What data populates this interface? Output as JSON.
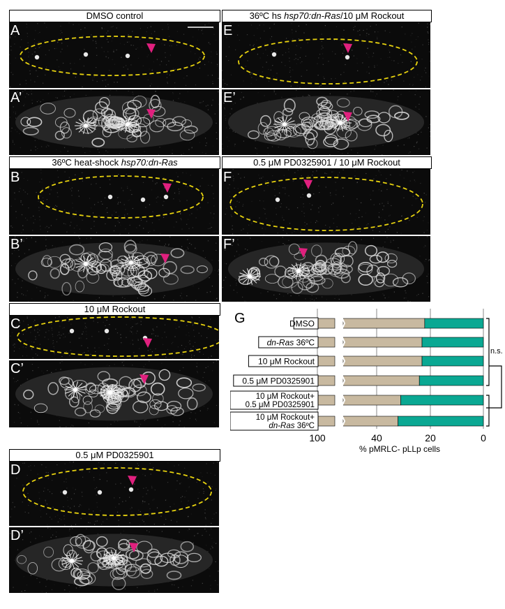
{
  "titles": {
    "a": "DMSO control",
    "e_prefix": "36ºC hs ",
    "e_italic": "hsp70:dn-Ras",
    "e_suffix": "/10 μM Rockout",
    "b_prefix": "36ºC heat-shock ",
    "b_italic": "hsp70:dn-Ras",
    "f": "0.5 μM PD0325901 / 10 μM Rockout",
    "c": "10 μM Rockout",
    "d": "0.5 μM PD0325901"
  },
  "panel_labels": {
    "a": "A",
    "a2": "A’",
    "b": "B",
    "b2": "B’",
    "c": "C",
    "c2": "C’",
    "d": "D",
    "d2": "D’",
    "e": "E",
    "e2": "E’",
    "f": "F",
    "f2": "F’",
    "g": "G"
  },
  "colors": {
    "beige": "#c8b9a0",
    "teal": "#0aa893",
    "dash": "#e7d20e",
    "arrow": "#e0207e",
    "grid": "#888888"
  },
  "chart_data": {
    "type": "bar",
    "orientation": "horizontal-stacked",
    "categories": [
      "DMSO",
      "dn-Ras 36ºC",
      "10 μM Rockout",
      "0.5 μM PD0325901",
      "10 μM Rockout+ 0.5 μM PD0325901",
      "10 μM Rockout+ dn-Ras 36ºC"
    ],
    "category_lines": [
      [
        "DMSO"
      ],
      [
        "dn-Ras 36ºC"
      ],
      [
        "10 μM Rockout"
      ],
      [
        "0.5 μM PD0325901"
      ],
      [
        "10 μM Rockout+",
        "0.5 μM PD0325901"
      ],
      [
        "10 μM Rockout+",
        "dn-Ras 36ºC"
      ]
    ],
    "series": [
      {
        "values": [
          22,
          23,
          23,
          24,
          31,
          32
        ]
      },
      {
        "values": [
          78,
          77,
          77,
          76,
          69,
          68
        ]
      }
    ],
    "xlabel": "% pMRLC- pLLp cells",
    "xticks": [
      "100",
      "40",
      "20",
      "0"
    ],
    "axis_break": true,
    "significance": [
      "n.s.",
      "**"
    ]
  }
}
